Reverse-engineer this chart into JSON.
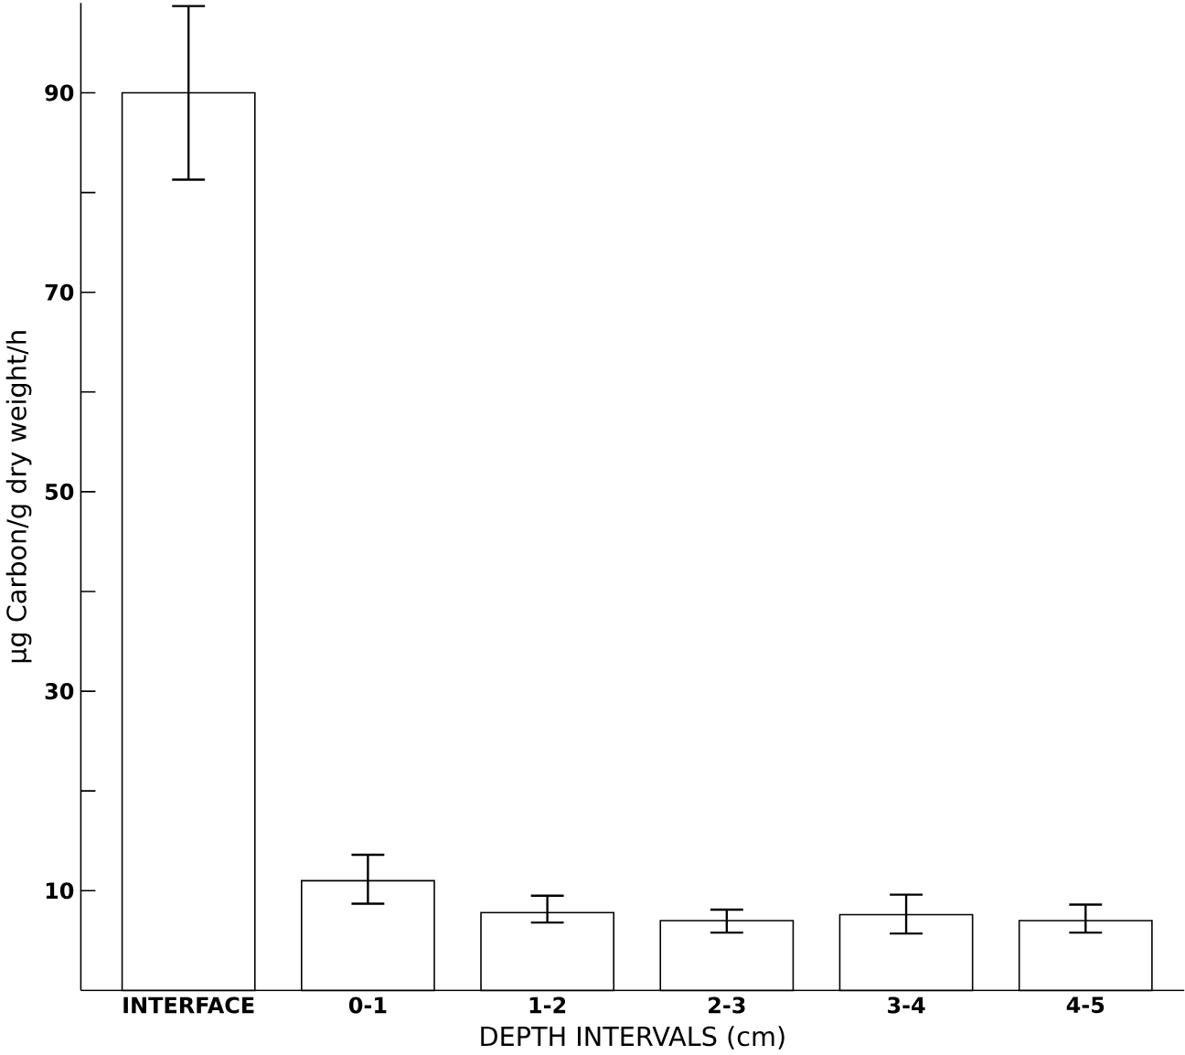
{
  "chart_data": {
    "type": "bar",
    "xlabel": "DEPTH INTERVALS (cm)",
    "ylabel": "µg Carbon/g dry weight/h",
    "categories": [
      "INTERFACE",
      "0-1",
      "1-2",
      "2-3",
      "3-4",
      "4-5"
    ],
    "values": [
      90,
      11.0,
      7.8,
      7.0,
      7.6,
      7.0
    ],
    "errors": [
      [
        81.3,
        98.7
      ],
      [
        8.7,
        13.6
      ],
      [
        6.8,
        9.5
      ],
      [
        5.8,
        8.1
      ],
      [
        5.7,
        9.6
      ],
      [
        5.8,
        8.6
      ]
    ],
    "color": "#000000",
    "ylim": [
      0,
      99
    ],
    "yticks": [
      10,
      {
        "value": 20,
        "label": null
      },
      30,
      {
        "value": 40,
        "label": null
      },
      50,
      {
        "value": 60,
        "label": null
      },
      70,
      {
        "value": 80,
        "label": null
      },
      90
    ],
    "grid": false
  }
}
